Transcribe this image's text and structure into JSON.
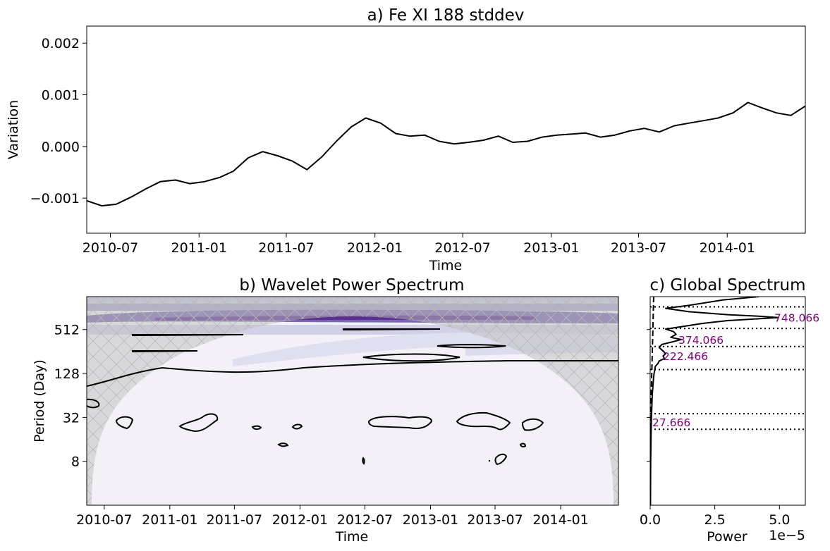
{
  "chart_data": [
    {
      "type": "line",
      "title": "a) Fe XI 188 stddev",
      "xlabel": "Time",
      "ylabel": "Variation",
      "x_ticks": [
        "2010-07",
        "2011-01",
        "2011-07",
        "2012-01",
        "2012-07",
        "2013-01",
        "2013-07",
        "2014-01"
      ],
      "y_ticks": [
        "0.002",
        "0.001",
        "0.000",
        "−0.001"
      ],
      "xlim": [
        "2010-05-13",
        "2014-06-12"
      ],
      "ylim": [
        -0.00168,
        0.00233
      ],
      "series": [
        {
          "x": [
            "2010-05-13",
            "2010-06-13",
            "2010-07-13",
            "2010-08-13",
            "2010-09-13",
            "2010-10-13",
            "2010-11-13",
            "2010-12-13",
            "2011-01-13",
            "2011-02-13",
            "2011-03-13",
            "2011-04-13",
            "2011-05-13",
            "2011-06-13",
            "2011-07-13",
            "2011-08-13",
            "2011-09-13",
            "2011-10-13",
            "2011-11-13",
            "2011-12-13",
            "2012-01-13",
            "2012-02-13",
            "2012-03-13",
            "2012-04-13",
            "2012-05-13",
            "2012-06-13",
            "2012-07-13",
            "2012-08-13",
            "2012-09-13",
            "2012-10-13",
            "2012-11-13",
            "2012-12-13",
            "2013-01-13",
            "2013-02-13",
            "2013-03-13",
            "2013-04-13",
            "2013-05-13",
            "2013-06-13",
            "2013-07-13",
            "2013-08-13",
            "2013-09-13",
            "2013-10-13",
            "2013-11-13",
            "2013-12-13",
            "2014-01-13",
            "2014-02-13",
            "2014-03-13",
            "2014-04-13",
            "2014-05-13",
            "2014-06-12"
          ],
          "values": [
            -0.00105,
            -0.00115,
            -0.00112,
            -0.00098,
            -0.00082,
            -0.00068,
            -0.00065,
            -0.00072,
            -0.00068,
            -0.0006,
            -0.00048,
            -0.00022,
            -0.0001,
            -0.00018,
            -0.00028,
            -0.00045,
            -0.0002,
            0.0001,
            0.00038,
            0.00055,
            0.00045,
            0.00025,
            0.0002,
            0.00022,
            0.0001,
            5e-05,
            8e-05,
            0.00012,
            0.0002,
            8e-05,
            0.0001,
            0.00018,
            0.00022,
            0.00024,
            0.00026,
            0.00018,
            0.00022,
            0.0003,
            0.00035,
            0.00028,
            0.0004,
            0.00045,
            0.0005,
            0.00055,
            0.00065,
            0.00085,
            0.00075,
            0.00065,
            0.0006,
            0.00078
          ]
        }
      ]
    },
    {
      "type": "heatmap",
      "title": "b) Wavelet Power Spectrum",
      "xlabel": "Time",
      "ylabel": "Period (Day)",
      "x_ticks": [
        "2010-07",
        "2011-01",
        "2011-07",
        "2012-01",
        "2012-07",
        "2013-01",
        "2013-07",
        "2014-01"
      ],
      "y_ticks": [
        "512",
        "128",
        "32",
        "8"
      ],
      "xlim": [
        "2010-05-13",
        "2014-06-12"
      ],
      "ylim": [
        2,
        1448
      ],
      "colormap": "Purples",
      "cone_of_influence": true
    },
    {
      "type": "line",
      "title": "c) Global Spectrum",
      "xlabel": "Power",
      "x_ticks": [
        "0.0",
        "2.5",
        "5.0"
      ],
      "offset_text": "1e−5",
      "xlim": [
        0,
        6.0
      ],
      "ylim": [
        2,
        1448
      ],
      "peaks": [
        "748.066",
        "374.066",
        "222.466",
        "27.666"
      ],
      "peak_periods": [
        748.066,
        374.066,
        222.466,
        27.666
      ],
      "dotted_lines_periods": [
        1050,
        530,
        300,
        145,
        36,
        22
      ],
      "series": [
        {
          "period": [
            1448,
            1300,
            1100,
            1000,
            900,
            820,
            780,
            748,
            720,
            680,
            620,
            560,
            520,
            480,
            440,
            400,
            374,
            350,
            320,
            290,
            260,
            240,
            222,
            205,
            190,
            175,
            160,
            145,
            128,
            100,
            64,
            32,
            16,
            8,
            2
          ],
          "power": [
            4.2,
            2.8,
            1.5,
            0.6,
            1.5,
            3.0,
            4.2,
            4.95,
            4.2,
            3.0,
            2.0,
            1.2,
            0.6,
            0.9,
            1.0,
            0.8,
            1.2,
            0.9,
            0.45,
            0.35,
            0.5,
            0.6,
            0.5,
            0.55,
            0.35,
            0.3,
            0.2,
            0.18,
            0.15,
            0.12,
            0.08,
            0.05,
            0.03,
            0.02,
            0.01
          ]
        }
      ]
    }
  ]
}
